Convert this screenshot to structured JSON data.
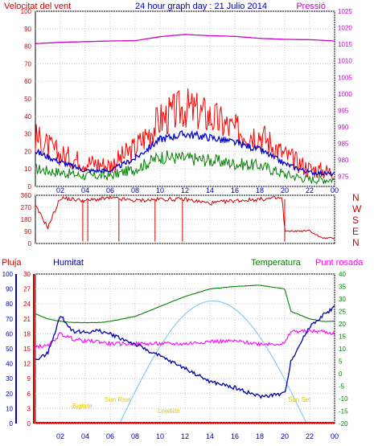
{
  "header": {
    "left_label": "Velocitat del vent",
    "title": "24 hour graph day : 21 Julio 2014",
    "right_label": "Pressió"
  },
  "panel3_labels": {
    "rain": "Pluja",
    "humidity": "Humitat",
    "temperature": "Temperatura",
    "dewpoint": "Punt rosada"
  },
  "compass_letters": [
    "N",
    "W",
    "S",
    "E",
    "N"
  ],
  "sun_labels": {
    "high_tide": "Bigtide",
    "sunrise": "Sun Rise",
    "low_tide": "Lowtide",
    "sunset": "Sun Set"
  },
  "colors": {
    "wind_gust": "#ff0000",
    "wind_avg": "#0000cc",
    "wind_low": "#008000",
    "pressure": "#cc00cc",
    "direction": "#cc0000",
    "humidity": "#0000aa",
    "temperature": "#008000",
    "dewpoint": "#ff00ff",
    "rain": "#ff0000",
    "solar": "#8ec8f0",
    "tide_label": "#e6c800"
  },
  "chart_data": [
    {
      "type": "line",
      "xticks": [
        "02",
        "04",
        "06",
        "08",
        "10",
        "12",
        "14",
        "16",
        "18",
        "20",
        "22",
        "00"
      ],
      "y_left_ticks": [
        0,
        10,
        20,
        30,
        40,
        50,
        60,
        70,
        80,
        90,
        100
      ],
      "ylim_left": [
        0,
        100
      ],
      "y_right_ticks": [
        975,
        980,
        985,
        990,
        995,
        1000,
        1005,
        1010,
        1015,
        1020,
        1025
      ],
      "ylim_right": [
        972,
        1025
      ],
      "x_hours": [
        0,
        2,
        4,
        6,
        8,
        10,
        12,
        14,
        16,
        18,
        20,
        22,
        24
      ],
      "series": [
        {
          "key": "gust",
          "axis": "left",
          "values": [
            28,
            18,
            14,
            12,
            22,
            38,
            45,
            40,
            32,
            30,
            18,
            10,
            8
          ]
        },
        {
          "key": "avg",
          "axis": "left",
          "values": [
            20,
            14,
            9,
            9,
            16,
            27,
            30,
            28,
            25,
            21,
            13,
            8,
            7
          ]
        },
        {
          "key": "low",
          "axis": "left",
          "values": [
            10,
            8,
            6,
            6,
            10,
            17,
            16,
            15,
            13,
            12,
            7,
            4,
            4
          ]
        },
        {
          "key": "pressure",
          "axis": "right",
          "values": [
            1015.2,
            1015.6,
            1015.8,
            1016.0,
            1016.1,
            1017.3,
            1018.0,
            1017.6,
            1017.4,
            1016.8,
            1016.5,
            1016.4,
            1016.0
          ]
        }
      ]
    },
    {
      "type": "line",
      "y_ticks": [
        0,
        90,
        180,
        270,
        360
      ],
      "ylim": [
        0,
        360
      ],
      "x_hours": [
        0,
        1,
        2,
        3,
        4,
        5,
        6,
        8,
        10,
        12,
        14,
        16,
        18,
        19.8,
        20,
        22,
        23,
        24
      ],
      "series": [
        {
          "key": "direction",
          "values": [
            280,
            120,
            340,
            330,
            320,
            330,
            340,
            320,
            330,
            330,
            300,
            320,
            330,
            340,
            90,
            95,
            40,
            40
          ]
        }
      ]
    },
    {
      "type": "line",
      "y_humidity_ticks": [
        0,
        10,
        20,
        30,
        40,
        50,
        60,
        70,
        80,
        90,
        100
      ],
      "y_rain_ticks": [
        0,
        3,
        6,
        9,
        12,
        15,
        18,
        21,
        24,
        27,
        30
      ],
      "y_temp_ticks": [
        -20,
        -15,
        -10,
        -5,
        0,
        5,
        10,
        15,
        20,
        25,
        30,
        35,
        40
      ],
      "ylim_humidity": [
        0,
        100
      ],
      "ylim_temp": [
        -20,
        40
      ],
      "x_hours": [
        0,
        1,
        2,
        3,
        4,
        5,
        6,
        8,
        10,
        12,
        14,
        16,
        18,
        20,
        20.5,
        22,
        23,
        24
      ],
      "series": [
        {
          "key": "humidity",
          "values": [
            42,
            47,
            72,
            62,
            61,
            62,
            60,
            53,
            45,
            37,
            28,
            24,
            18,
            20,
            42,
            65,
            72,
            78
          ]
        },
        {
          "key": "temperature",
          "values": [
            24,
            22,
            21,
            20.5,
            20.5,
            20.5,
            21,
            23,
            27,
            31,
            34,
            35,
            35.5,
            34,
            25,
            22,
            21,
            21
          ]
        },
        {
          "key": "dewpoint",
          "values": [
            11,
            11,
            16,
            14,
            13,
            13,
            12,
            12,
            12,
            12,
            13,
            13,
            12,
            12,
            17,
            17,
            17,
            16
          ]
        },
        {
          "key": "rain",
          "values": [
            0,
            0,
            0,
            0,
            0,
            0,
            0,
            0,
            0,
            0,
            0,
            0,
            0,
            0,
            0,
            0,
            0,
            0
          ]
        }
      ],
      "solar": {
        "rise_hour": 6.75,
        "set_hour": 21.75,
        "peak_percent": 82
      }
    }
  ]
}
